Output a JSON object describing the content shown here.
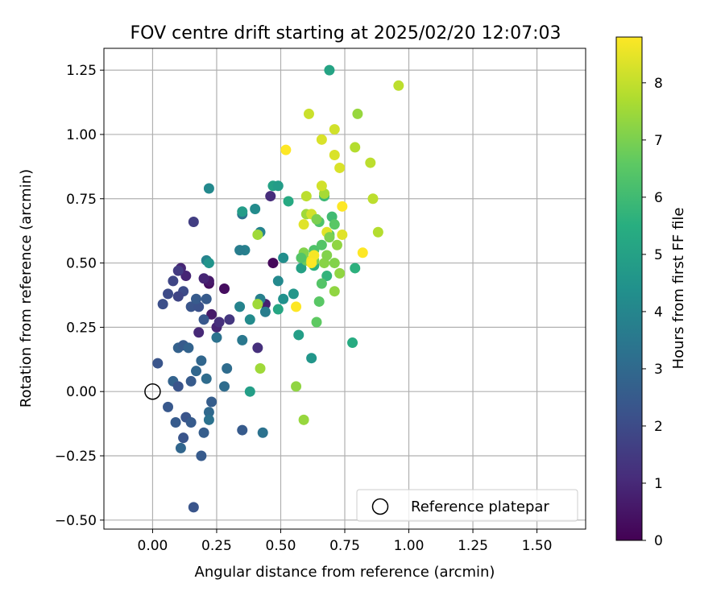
{
  "chart_data": {
    "type": "scatter",
    "title": "FOV centre drift starting at 2025/02/20 12:07:03",
    "xlabel": "Angular distance from reference (arcmin)",
    "ylabel": "Rotation from reference (arcmin)",
    "xlim": [
      -0.19,
      1.69
    ],
    "ylim": [
      -0.535,
      1.335
    ],
    "x_ticks": [
      0.0,
      0.25,
      0.5,
      0.75,
      1.0,
      1.25,
      1.5
    ],
    "x_tick_labels": [
      "0.00",
      "0.25",
      "0.50",
      "0.75",
      "1.00",
      "1.25",
      "1.50"
    ],
    "y_ticks": [
      -0.5,
      -0.25,
      0.0,
      0.25,
      0.5,
      0.75,
      1.0,
      1.25
    ],
    "y_tick_labels": [
      "−0.50",
      "−0.25",
      "0.00",
      "0.25",
      "0.50",
      "0.75",
      "1.00",
      "1.25"
    ],
    "grid": true,
    "legend": {
      "placement": "lower-right",
      "entries": [
        {
          "label": "Reference platepar",
          "marker": "open-circle"
        }
      ]
    },
    "reference_point": {
      "x": 0.0,
      "y": 0.0
    },
    "colorbar": {
      "label": "Hours from first FF file",
      "range": [
        0,
        8.8
      ],
      "ticks": [
        0,
        1,
        2,
        3,
        4,
        5,
        6,
        7,
        8
      ],
      "tick_labels": [
        "0",
        "1",
        "2",
        "3",
        "4",
        "5",
        "6",
        "7",
        "8"
      ],
      "colormap": "viridis"
    },
    "points": [
      [
        0.11,
        0.48,
        0.9
      ],
      [
        0.13,
        0.45,
        0.9
      ],
      [
        0.22,
        0.42,
        0.3
      ],
      [
        0.28,
        0.4,
        0.3
      ],
      [
        0.22,
        0.43,
        0.6
      ],
      [
        0.2,
        0.44,
        0.9
      ],
      [
        0.23,
        0.3,
        0.6
      ],
      [
        0.18,
        0.23,
        1.0
      ],
      [
        0.25,
        0.25,
        0.9
      ],
      [
        0.3,
        0.28,
        1.4
      ],
      [
        0.26,
        0.27,
        1.2
      ],
      [
        0.1,
        0.47,
        1.5
      ],
      [
        0.08,
        0.43,
        1.8
      ],
      [
        0.06,
        0.38,
        2.0
      ],
      [
        0.12,
        0.39,
        2.0
      ],
      [
        0.1,
        0.37,
        1.8
      ],
      [
        0.16,
        0.66,
        1.6
      ],
      [
        0.46,
        0.76,
        1.1
      ],
      [
        0.47,
        0.5,
        0.2
      ],
      [
        0.44,
        0.34,
        0.8
      ],
      [
        0.41,
        0.17,
        1.2
      ],
      [
        0.04,
        0.34,
        2.1
      ],
      [
        0.15,
        0.33,
        2.3
      ],
      [
        0.18,
        0.33,
        2.2
      ],
      [
        0.2,
        0.28,
        2.4
      ],
      [
        0.21,
        0.36,
        2.5
      ],
      [
        0.17,
        0.36,
        2.5
      ],
      [
        0.1,
        0.17,
        2.7
      ],
      [
        0.12,
        0.18,
        2.5
      ],
      [
        0.14,
        0.17,
        2.8
      ],
      [
        0.02,
        0.11,
        2.3
      ],
      [
        0.08,
        0.04,
        2.8
      ],
      [
        0.1,
        0.02,
        2.3
      ],
      [
        0.15,
        0.04,
        2.5
      ],
      [
        0.17,
        0.08,
        2.9
      ],
      [
        0.19,
        0.12,
        2.9
      ],
      [
        0.21,
        0.05,
        3.1
      ],
      [
        0.23,
        -0.04,
        2.6
      ],
      [
        0.22,
        -0.08,
        3.0
      ],
      [
        0.22,
        -0.11,
        3.3
      ],
      [
        0.2,
        -0.16,
        2.6
      ],
      [
        0.13,
        -0.1,
        2.3
      ],
      [
        0.15,
        -0.12,
        2.5
      ],
      [
        0.12,
        -0.18,
        2.3
      ],
      [
        0.11,
        -0.22,
        2.9
      ],
      [
        0.09,
        -0.12,
        2.5
      ],
      [
        0.06,
        -0.06,
        2.4
      ],
      [
        0.19,
        -0.25,
        2.5
      ],
      [
        0.16,
        -0.45,
        2.3
      ],
      [
        0.35,
        -0.15,
        2.5
      ],
      [
        0.43,
        -0.16,
        3.3
      ],
      [
        0.28,
        0.02,
        3.1
      ],
      [
        0.29,
        0.09,
        3.1
      ],
      [
        0.25,
        0.21,
        3.3
      ],
      [
        0.35,
        0.2,
        3.5
      ],
      [
        0.34,
        0.33,
        3.9
      ],
      [
        0.38,
        0.28,
        4.2
      ],
      [
        0.42,
        0.36,
        3.8
      ],
      [
        0.44,
        0.31,
        3.7
      ],
      [
        0.42,
        0.62,
        3.9
      ],
      [
        0.4,
        0.71,
        4.2
      ],
      [
        0.35,
        0.69,
        3.3
      ],
      [
        0.36,
        0.55,
        3.8
      ],
      [
        0.34,
        0.55,
        3.7
      ],
      [
        0.21,
        0.51,
        3.9
      ],
      [
        0.22,
        0.5,
        4.5
      ],
      [
        0.22,
        0.79,
        4.1
      ],
      [
        0.35,
        0.7,
        4.8
      ],
      [
        0.47,
        0.8,
        5.0
      ],
      [
        0.49,
        0.8,
        4.8
      ],
      [
        0.51,
        0.52,
        4.3
      ],
      [
        0.49,
        0.43,
        4.1
      ],
      [
        0.51,
        0.36,
        4.4
      ],
      [
        0.49,
        0.32,
        5.2
      ],
      [
        0.55,
        0.38,
        4.6
      ],
      [
        0.58,
        0.48,
        5.0
      ],
      [
        0.57,
        0.22,
        4.9
      ],
      [
        0.62,
        0.13,
        4.6
      ],
      [
        0.38,
        0.0,
        4.9
      ],
      [
        0.53,
        0.74,
        5.3
      ],
      [
        0.69,
        1.25,
        5.1
      ],
      [
        0.78,
        0.19,
        5.4
      ],
      [
        0.79,
        0.48,
        5.6
      ],
      [
        0.67,
        0.76,
        5.9
      ],
      [
        0.7,
        0.68,
        6.0
      ],
      [
        0.68,
        0.45,
        5.7
      ],
      [
        0.63,
        0.49,
        5.6
      ],
      [
        0.63,
        0.55,
        6.3
      ],
      [
        0.65,
        0.66,
        6.3
      ],
      [
        0.66,
        0.57,
        6.4
      ],
      [
        0.69,
        0.61,
        6.6
      ],
      [
        0.71,
        0.65,
        6.5
      ],
      [
        0.66,
        0.42,
        6.4
      ],
      [
        0.65,
        0.35,
        6.5
      ],
      [
        0.64,
        0.27,
        6.6
      ],
      [
        0.6,
        0.51,
        6.8
      ],
      [
        0.59,
        0.54,
        7.1
      ],
      [
        0.63,
        0.51,
        7.0
      ],
      [
        0.67,
        0.5,
        7.2
      ],
      [
        0.72,
        0.57,
        7.3
      ],
      [
        0.73,
        0.46,
        7.3
      ],
      [
        0.71,
        0.5,
        7.1
      ],
      [
        0.71,
        0.39,
        7.3
      ],
      [
        0.6,
        0.69,
        7.5
      ],
      [
        0.67,
        0.77,
        7.6
      ],
      [
        0.8,
        1.08,
        7.4
      ],
      [
        0.79,
        0.95,
        7.8
      ],
      [
        0.88,
        0.62,
        7.8
      ],
      [
        0.86,
        0.75,
        7.9
      ],
      [
        0.85,
        0.89,
        7.9
      ],
      [
        0.96,
        1.19,
        7.9
      ],
      [
        0.61,
        1.08,
        8.1
      ],
      [
        0.66,
        0.98,
        8.3
      ],
      [
        0.71,
        1.02,
        8.2
      ],
      [
        0.71,
        0.92,
        8.3
      ],
      [
        0.73,
        0.87,
        8.3
      ],
      [
        0.66,
        0.8,
        8.2
      ],
      [
        0.62,
        0.69,
        8.2
      ],
      [
        0.59,
        0.65,
        8.4
      ],
      [
        0.68,
        0.62,
        8.4
      ],
      [
        0.74,
        0.61,
        8.4
      ],
      [
        0.62,
        0.51,
        8.6
      ],
      [
        0.63,
        0.53,
        8.7
      ],
      [
        0.62,
        0.5,
        8.8
      ],
      [
        0.56,
        0.33,
        8.8
      ],
      [
        0.74,
        0.72,
        8.8
      ],
      [
        0.82,
        0.54,
        8.8
      ],
      [
        0.52,
        0.94,
        8.8
      ],
      [
        0.59,
        -0.11,
        7.4
      ],
      [
        0.56,
        0.02,
        7.3
      ],
      [
        0.42,
        0.09,
        7.5
      ],
      [
        0.41,
        0.34,
        7.5
      ],
      [
        0.41,
        0.61,
        7.5
      ],
      [
        0.6,
        0.76,
        7.9
      ],
      [
        0.64,
        0.67,
        7.0
      ],
      [
        0.69,
        0.6,
        7.0
      ],
      [
        0.58,
        0.52,
        6.4
      ],
      [
        0.68,
        0.53,
        7.1
      ]
    ]
  }
}
